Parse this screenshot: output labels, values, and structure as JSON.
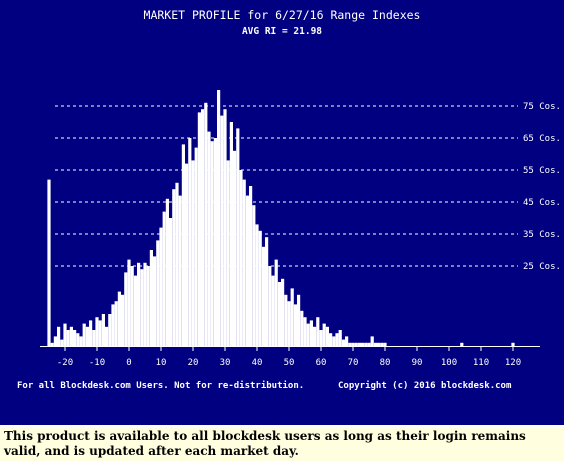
{
  "header": {
    "title": "MARKET PROFILE for 6/27/16 Range Indexes",
    "subtitle": "AVG RI = 21.98"
  },
  "footer": {
    "left_text": "For all Blockdesk.com Users. Not for re-distribution.",
    "right_text": "Copyright (c) 2016 blockdesk.com"
  },
  "caption": {
    "text": "This product is available to all blockdesk users as long as their login remains valid, and is updated after each market day."
  },
  "colors": {
    "background": "#000080",
    "bars": "#FFFFFF",
    "text": "#FFFFFF",
    "caption_background": "#FFFFE0"
  },
  "chart_data": {
    "type": "bar",
    "title": "MARKET PROFILE for 6/27/16 Range Indexes",
    "subtitle": "AVG RI = 21.98",
    "xlabel": "",
    "ylabel": "",
    "xlim": [
      -26,
      121
    ],
    "ylim": [
      0,
      80
    ],
    "x_ticks": [
      -20,
      -10,
      0,
      10,
      20,
      30,
      40,
      50,
      60,
      70,
      80,
      90,
      100,
      110,
      120
    ],
    "x_tick_labels": [
      "-20",
      "-10",
      "0",
      "10",
      "20",
      "30",
      "40",
      "50",
      "60",
      "70",
      "80",
      "90",
      "100",
      "110",
      "120"
    ],
    "y_gridlines": [
      25,
      35,
      45,
      55,
      65,
      75
    ],
    "y_gridline_labels": [
      "25 Cos.",
      "35 Cos.",
      "45 Cos.",
      "55 Cos.",
      "65 Cos.",
      "75 Cos."
    ],
    "grid": true,
    "x": [
      -25,
      -24,
      -23,
      -22,
      -21,
      -20,
      -19,
      -18,
      -17,
      -16,
      -15,
      -14,
      -13,
      -12,
      -11,
      -10,
      -9,
      -8,
      -7,
      -6,
      -5,
      -4,
      -3,
      -2,
      -1,
      0,
      1,
      2,
      3,
      4,
      5,
      6,
      7,
      8,
      9,
      10,
      11,
      12,
      13,
      14,
      15,
      16,
      17,
      18,
      19,
      20,
      21,
      22,
      23,
      24,
      25,
      26,
      27,
      28,
      29,
      30,
      31,
      32,
      33,
      34,
      35,
      36,
      37,
      38,
      39,
      40,
      41,
      42,
      43,
      44,
      45,
      46,
      47,
      48,
      49,
      50,
      51,
      52,
      53,
      54,
      55,
      56,
      57,
      58,
      59,
      60,
      61,
      62,
      63,
      64,
      65,
      66,
      67,
      68,
      69,
      70,
      71,
      72,
      73,
      74,
      75,
      76,
      77,
      78,
      79,
      80,
      104,
      120
    ],
    "values": [
      52,
      1,
      3,
      6,
      2,
      7,
      5,
      6,
      5,
      4,
      3,
      7,
      6,
      8,
      5,
      9,
      8,
      10,
      6,
      10,
      13,
      14,
      17,
      16,
      23,
      27,
      25,
      22,
      26,
      24,
      26,
      25,
      30,
      28,
      33,
      37,
      42,
      46,
      40,
      49,
      51,
      47,
      63,
      57,
      65,
      58,
      62,
      73,
      74,
      76,
      67,
      64,
      65,
      80,
      72,
      74,
      58,
      70,
      61,
      68,
      55,
      52,
      47,
      50,
      44,
      38,
      36,
      31,
      34,
      25,
      22,
      27,
      20,
      21,
      16,
      14,
      18,
      13,
      16,
      11,
      9,
      7,
      8,
      6,
      9,
      5,
      7,
      6,
      4,
      3,
      4,
      5,
      2,
      3,
      1,
      1,
      1,
      1,
      1,
      1,
      1,
      3,
      1,
      1,
      1,
      1,
      1,
      1
    ]
  }
}
